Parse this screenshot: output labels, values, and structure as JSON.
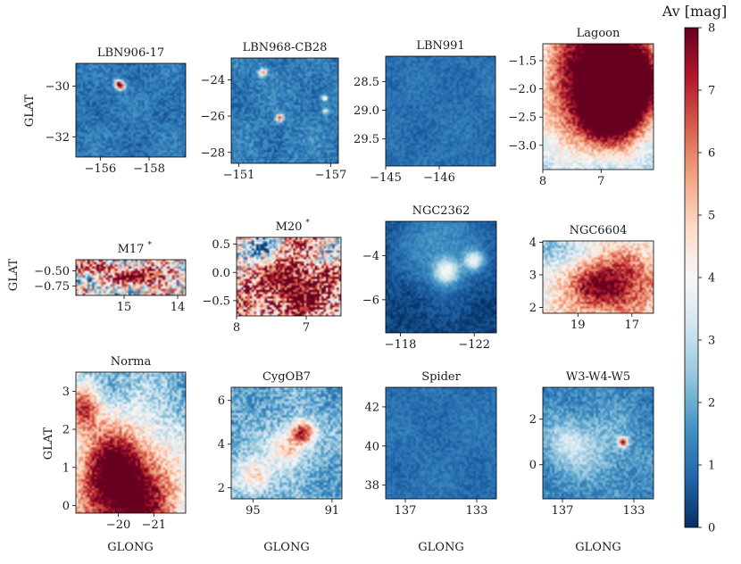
{
  "chart_data": {
    "type": "heatmap",
    "colormap": "RdBu_r",
    "colorbar": {
      "label": "Av [mag]",
      "range": [
        0,
        8
      ],
      "ticks": [
        "0",
        "1",
        "2",
        "3",
        "4",
        "5",
        "6",
        "7",
        "8"
      ]
    },
    "xlabel": "GLONG",
    "ylabel": "GLAT",
    "panels": [
      {
        "title": "LBN906-17",
        "xlim": [
          -155,
          -159.5
        ],
        "ylim": [
          -32.8,
          -29.1
        ],
        "xticks": [
          {
            "v": -156,
            "label": "−156"
          },
          {
            "v": -158,
            "label": "−158"
          }
        ],
        "yticks": [
          {
            "v": -30,
            "label": "−30"
          },
          {
            "v": -32,
            "label": "−32"
          }
        ],
        "field": {
          "base": 1.1,
          "noise": 0.5,
          "blobs": [
            {
              "x": 0.4,
              "y": 0.23,
              "r": 0.03,
              "a": 7
            },
            {
              "x": 0.38,
              "y": 0.19,
              "r": 0.02,
              "a": 3
            }
          ]
        }
      },
      {
        "title": "LBN968-CB28",
        "xlim": [
          -150.5,
          -157.5
        ],
        "ylim": [
          -28.6,
          -22.8
        ],
        "xticks": [
          {
            "v": -151,
            "label": "−151"
          },
          {
            "v": -157,
            "label": "−157"
          }
        ],
        "yticks": [
          {
            "v": -24,
            "label": "−24"
          },
          {
            "v": -26,
            "label": "−26"
          },
          {
            "v": -28,
            "label": "−28"
          }
        ],
        "field": {
          "base": 1.2,
          "noise": 0.55,
          "blobs": [
            {
              "x": 0.29,
              "y": 0.13,
              "r": 0.025,
              "a": 5
            },
            {
              "x": 0.45,
              "y": 0.57,
              "r": 0.025,
              "a": 6
            },
            {
              "x": 0.88,
              "y": 0.38,
              "r": 0.02,
              "a": 4
            },
            {
              "x": 0.89,
              "y": 0.5,
              "r": 0.02,
              "a": 3
            }
          ]
        }
      },
      {
        "title": "LBN991",
        "xlim": [
          -145,
          -147.05
        ],
        "ylim": [
          29.97,
          28.06
        ],
        "xticks": [
          {
            "v": -145,
            "label": "−145"
          },
          {
            "v": -146,
            "label": "−146"
          }
        ],
        "yticks": [
          {
            "v": 28.5,
            "label": "28.5"
          },
          {
            "v": 29.0,
            "label": "29.0"
          },
          {
            "v": 29.5,
            "label": "29.5"
          }
        ],
        "field": {
          "base": 1.0,
          "noise": 0.35,
          "blobs": []
        }
      },
      {
        "title": "Lagoon",
        "xlim": [
          8,
          6.1
        ],
        "ylim": [
          -3.43,
          -1.2
        ],
        "xticks": [
          {
            "v": 8,
            "label": "8"
          },
          {
            "v": 7,
            "label": "7"
          }
        ],
        "yticks": [
          {
            "v": -1.5,
            "label": "−1.5"
          },
          {
            "v": -2.0,
            "label": "−2.0"
          },
          {
            "v": -2.5,
            "label": "−2.5"
          },
          {
            "v": -3.0,
            "label": "−3.0"
          }
        ],
        "field": {
          "base": 2.4,
          "noise": 0.8,
          "blobs": [
            {
              "x": 0.5,
              "y": 0.08,
              "r": 0.35,
              "a": 6
            },
            {
              "x": 0.65,
              "y": 0.55,
              "r": 0.22,
              "a": 6
            },
            {
              "x": 0.2,
              "y": 0.6,
              "r": 0.25,
              "a": 2
            },
            {
              "x": 0.85,
              "y": 0.3,
              "r": 0.2,
              "a": 4
            }
          ]
        }
      },
      {
        "title": "M17",
        "title_mark": "*",
        "xlim": [
          15.9,
          13.85
        ],
        "ylim": [
          -0.9,
          -0.32
        ],
        "xticks": [
          {
            "v": 15,
            "label": "15"
          },
          {
            "v": 14,
            "label": "14"
          }
        ],
        "yticks": [
          {
            "v": -0.5,
            "label": "−0.50"
          },
          {
            "v": -0.75,
            "label": "−0.75"
          }
        ],
        "field": {
          "base": 3.8,
          "noise": 2.8,
          "blobs": [
            {
              "x": 0.6,
              "y": 0.45,
              "r": 0.18,
              "a": 5
            },
            {
              "x": 0.15,
              "y": 0.2,
              "r": 0.15,
              "a": 3
            }
          ]
        }
      },
      {
        "title": "M20",
        "title_mark": "*",
        "xlim": [
          8,
          6.5
        ],
        "ylim": [
          -0.77,
          0.62
        ],
        "xticks": [
          {
            "v": 8,
            "label": "8"
          },
          {
            "v": 7,
            "label": "7"
          }
        ],
        "yticks": [
          {
            "v": 0.5,
            "label": "0.5"
          },
          {
            "v": 0.0,
            "label": "0.0"
          },
          {
            "v": -0.5,
            "label": "−0.5"
          }
        ],
        "field": {
          "base": 5.2,
          "noise": 2.6,
          "blobs": [
            {
              "x": 0.2,
              "y": 0.15,
              "r": 0.15,
              "a": -4
            },
            {
              "x": 0.9,
              "y": 0.2,
              "r": 0.12,
              "a": -3
            },
            {
              "x": 0.55,
              "y": 0.6,
              "r": 0.3,
              "a": 3
            }
          ]
        }
      },
      {
        "title": "NGC2362",
        "xlim": [
          -117.2,
          -123.2
        ],
        "ylim": [
          -7.5,
          -2.45
        ],
        "xticks": [
          {
            "v": -118,
            "label": "−118"
          },
          {
            "v": -122,
            "label": "−122"
          }
        ],
        "yticks": [
          {
            "v": -4,
            "label": "−4"
          },
          {
            "v": -6,
            "label": "−6"
          }
        ],
        "field": {
          "base": 0.3,
          "noise": 0.35,
          "blobs": [
            {
              "x": 0.5,
              "y": 0.2,
              "r": 0.3,
              "a": 1.3
            },
            {
              "x": 0.55,
              "y": 0.45,
              "r": 0.08,
              "a": 3
            },
            {
              "x": 0.8,
              "y": 0.35,
              "r": 0.06,
              "a": 3
            }
          ]
        }
      },
      {
        "title": "NGC6604",
        "xlim": [
          20.3,
          16.2
        ],
        "ylim": [
          1.82,
          4.04
        ],
        "xticks": [
          {
            "v": 19,
            "label": "19"
          },
          {
            "v": 17,
            "label": "17"
          }
        ],
        "yticks": [
          {
            "v": 4,
            "label": "4"
          },
          {
            "v": 3,
            "label": "3"
          },
          {
            "v": 2,
            "label": "2"
          }
        ],
        "field": {
          "base": 4.0,
          "noise": 1.0,
          "blobs": [
            {
              "x": 0.6,
              "y": 0.6,
              "r": 0.3,
              "a": 4
            },
            {
              "x": 0.1,
              "y": 0.15,
              "r": 0.2,
              "a": -2
            }
          ]
        }
      },
      {
        "title": "Norma",
        "xlim": [
          -18.8,
          -21.9
        ],
        "ylim": [
          -0.2,
          3.5
        ],
        "xticks": [
          {
            "v": -20,
            "label": "−20"
          },
          {
            "v": -21,
            "label": "−21"
          }
        ],
        "yticks": [
          {
            "v": 3,
            "label": "3"
          },
          {
            "v": 2,
            "label": "2"
          },
          {
            "v": 1,
            "label": "1"
          },
          {
            "v": 0,
            "label": "0"
          }
        ],
        "field": {
          "base": 2.2,
          "noise": 1.0,
          "blobs": [
            {
              "x": 0.5,
              "y": 0.95,
              "r": 0.35,
              "a": 6
            },
            {
              "x": 0.3,
              "y": 0.65,
              "r": 0.22,
              "a": 3
            },
            {
              "x": 0.05,
              "y": 0.25,
              "r": 0.12,
              "a": 4
            }
          ]
        }
      },
      {
        "title": "CygOB7",
        "xlim": [
          96.1,
          90.5
        ],
        "ylim": [
          1.5,
          6.6
        ],
        "xticks": [
          {
            "v": 95,
            "label": "95"
          },
          {
            "v": 91,
            "label": "91"
          }
        ],
        "yticks": [
          {
            "v": 6,
            "label": "6"
          },
          {
            "v": 4,
            "label": "4"
          },
          {
            "v": 2,
            "label": "2"
          }
        ],
        "field": {
          "base": 2.0,
          "noise": 0.9,
          "blobs": [
            {
              "x": 0.65,
              "y": 0.4,
              "r": 0.08,
              "a": 5
            },
            {
              "x": 0.5,
              "y": 0.55,
              "r": 0.12,
              "a": 3
            },
            {
              "x": 0.2,
              "y": 0.8,
              "r": 0.12,
              "a": 3
            }
          ]
        }
      },
      {
        "title": "Spider",
        "xlim": [
          138.1,
          131.9
        ],
        "ylim": [
          37.3,
          43.0
        ],
        "xticks": [
          {
            "v": 137,
            "label": "137"
          },
          {
            "v": 133,
            "label": "133"
          }
        ],
        "yticks": [
          {
            "v": 42,
            "label": "42"
          },
          {
            "v": 40,
            "label": "40"
          },
          {
            "v": 38,
            "label": "38"
          }
        ],
        "field": {
          "base": 1.0,
          "noise": 0.35,
          "blobs": []
        }
      },
      {
        "title": "W3-W4-W5",
        "xlim": [
          138.1,
          131.9
        ],
        "ylim": [
          -1.5,
          3.4
        ],
        "xticks": [
          {
            "v": 137,
            "label": "137"
          },
          {
            "v": 133,
            "label": "133"
          }
        ],
        "yticks": [
          {
            "v": 2,
            "label": "2"
          },
          {
            "v": 0,
            "label": "0"
          }
        ],
        "field": {
          "base": 1.3,
          "noise": 0.6,
          "blobs": [
            {
              "x": 0.73,
              "y": 0.49,
              "r": 0.03,
              "a": 6
            },
            {
              "x": 0.5,
              "y": 0.55,
              "r": 0.25,
              "a": 1.0
            },
            {
              "x": 0.2,
              "y": 0.5,
              "r": 0.15,
              "a": 1.5
            }
          ]
        }
      }
    ]
  }
}
